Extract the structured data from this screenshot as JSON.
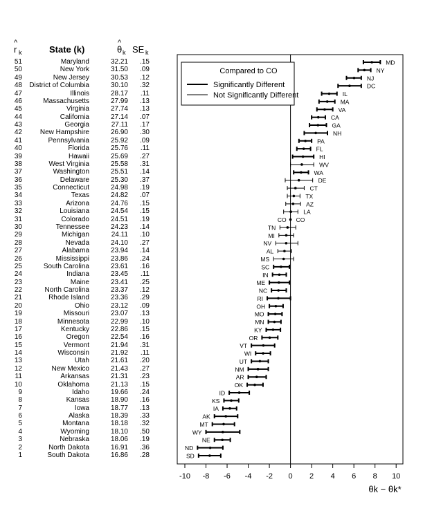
{
  "headers": {
    "rank": "r",
    "rank_sub": "k",
    "hat": "^",
    "state": "State (k)",
    "theta": "θ",
    "theta_sub": "k",
    "se": "SE",
    "se_sub": "k"
  },
  "rows": [
    {
      "rank": "51",
      "state": "Maryland",
      "theta": "32.21",
      "se": ".15"
    },
    {
      "rank": "50",
      "state": "New York",
      "theta": "31.50",
      "se": ".09"
    },
    {
      "rank": "49",
      "state": "New Jersey",
      "theta": "30.53",
      "se": ".12"
    },
    {
      "rank": "48",
      "state": "District of Columbia",
      "theta": "30.10",
      "se": ".32"
    },
    {
      "rank": "47",
      "state": "Illinois",
      "theta": "28.17",
      "se": ".11"
    },
    {
      "rank": "46",
      "state": "Massachusetts",
      "theta": "27.99",
      "se": ".13"
    },
    {
      "rank": "45",
      "state": "Virginia",
      "theta": "27.74",
      "se": ".13"
    },
    {
      "rank": "44",
      "state": "California",
      "theta": "27.14",
      "se": ".07"
    },
    {
      "rank": "43",
      "state": "Georgia",
      "theta": "27.11",
      "se": ".17"
    },
    {
      "rank": "42",
      "state": "New Hampshire",
      "theta": "26.90",
      "se": ".30"
    },
    {
      "rank": "41",
      "state": "Pennsylvania",
      "theta": "25.92",
      "se": ".09"
    },
    {
      "rank": "40",
      "state": "Florida",
      "theta": "25.76",
      "se": ".11"
    },
    {
      "rank": "39",
      "state": "Hawaii",
      "theta": "25.69",
      "se": ".27"
    },
    {
      "rank": "38",
      "state": "West Virginia",
      "theta": "25.58",
      "se": ".31"
    },
    {
      "rank": "37",
      "state": "Washington",
      "theta": "25.51",
      "se": ".14"
    },
    {
      "rank": "36",
      "state": "Delaware",
      "theta": "25.30",
      "se": ".37"
    },
    {
      "rank": "35",
      "state": "Connecticut",
      "theta": "24.98",
      "se": ".19"
    },
    {
      "rank": "34",
      "state": "Texas",
      "theta": "24.82",
      "se": ".07"
    },
    {
      "rank": "33",
      "state": "Arizona",
      "theta": "24.76",
      "se": ".15"
    },
    {
      "rank": "32",
      "state": "Louisiana",
      "theta": "24.54",
      "se": ".15"
    },
    {
      "rank": "31",
      "state": "Colorado",
      "theta": "24.51",
      "se": ".19"
    },
    {
      "rank": "30",
      "state": "Tennessee",
      "theta": "24.23",
      "se": ".14"
    },
    {
      "rank": "29",
      "state": "Michigan",
      "theta": "24.11",
      "se": ".10"
    },
    {
      "rank": "28",
      "state": "Nevada",
      "theta": "24.10",
      "se": ".27"
    },
    {
      "rank": "27",
      "state": "Alabama",
      "theta": "23.94",
      "se": ".14"
    },
    {
      "rank": "26",
      "state": "Mississippi",
      "theta": "23.86",
      "se": ".24"
    },
    {
      "rank": "25",
      "state": "South Carolina",
      "theta": "23.61",
      "se": ".16"
    },
    {
      "rank": "24",
      "state": "Indiana",
      "theta": "23.45",
      "se": ".11"
    },
    {
      "rank": "23",
      "state": "Maine",
      "theta": "23.41",
      "se": ".25"
    },
    {
      "rank": "22",
      "state": "North Carolina",
      "theta": "23.37",
      "se": ".12"
    },
    {
      "rank": "21",
      "state": "Rhode Island",
      "theta": "23.36",
      "se": ".29"
    },
    {
      "rank": "20",
      "state": "Ohio",
      "theta": "23.12",
      "se": ".09"
    },
    {
      "rank": "19",
      "state": "Missouri",
      "theta": "23.07",
      "se": ".13"
    },
    {
      "rank": "18",
      "state": "Minnesota",
      "theta": "22.99",
      "se": ".10"
    },
    {
      "rank": "17",
      "state": "Kentucky",
      "theta": "22.86",
      "se": ".15"
    },
    {
      "rank": "16",
      "state": "Oregon",
      "theta": "22.54",
      "se": ".16"
    },
    {
      "rank": "15",
      "state": "Vermont",
      "theta": "21.94",
      "se": ".31"
    },
    {
      "rank": "14",
      "state": "Wisconsin",
      "theta": "21.92",
      "se": ".11"
    },
    {
      "rank": "13",
      "state": "Utah",
      "theta": "21.61",
      "se": ".20"
    },
    {
      "rank": "12",
      "state": "New Mexico",
      "theta": "21.43",
      "se": ".27"
    },
    {
      "rank": "11",
      "state": "Arkansas",
      "theta": "21.31",
      "se": ".23"
    },
    {
      "rank": "10",
      "state": "Oklahoma",
      "theta": "21.13",
      "se": ".15"
    },
    {
      "rank": "9",
      "state": "Idaho",
      "theta": "19.66",
      "se": ".24"
    },
    {
      "rank": "8",
      "state": "Kansas",
      "theta": "18.90",
      "se": ".16"
    },
    {
      "rank": "7",
      "state": "Iowa",
      "theta": "18.77",
      "se": ".13"
    },
    {
      "rank": "6",
      "state": "Alaska",
      "theta": "18.39",
      "se": ".33"
    },
    {
      "rank": "5",
      "state": "Montana",
      "theta": "18.18",
      "se": ".32"
    },
    {
      "rank": "4",
      "state": "Wyoming",
      "theta": "18.10",
      "se": ".50"
    },
    {
      "rank": "3",
      "state": "Nebraska",
      "theta": "18.06",
      "se": ".19"
    },
    {
      "rank": "2",
      "state": "North Dakota",
      "theta": "16.91",
      "se": ".36"
    },
    {
      "rank": "1",
      "state": "South Dakota",
      "theta": "16.86",
      "se": ".28"
    }
  ],
  "chart_data": {
    "type": "scatter",
    "subtype": "error-bar",
    "reference_state": "CO",
    "legend": {
      "title": "Compared to CO",
      "entries": [
        {
          "label": "Significantly Different",
          "style": "thick"
        },
        {
          "label": "Not Significantly Different",
          "style": "thin"
        }
      ],
      "placement": "top-left"
    },
    "xlabel": "θk − θk*",
    "xlim": [
      -10.5,
      10.5
    ],
    "xticks": [
      -10,
      -8,
      -6,
      -4,
      -2,
      0,
      2,
      4,
      6,
      8,
      10
    ],
    "reference_line": 0,
    "points": [
      {
        "state": "MD",
        "diff": 7.7,
        "lo": 6.9,
        "hi": 8.5,
        "sig": true
      },
      {
        "state": "NY",
        "diff": 6.99,
        "lo": 6.4,
        "hi": 7.6,
        "sig": true
      },
      {
        "state": "NJ",
        "diff": 6.02,
        "lo": 5.3,
        "hi": 6.7,
        "sig": true
      },
      {
        "state": "DC",
        "diff": 5.59,
        "lo": 4.5,
        "hi": 6.7,
        "sig": true
      },
      {
        "state": "IL",
        "diff": 3.66,
        "lo": 2.95,
        "hi": 4.4,
        "sig": true
      },
      {
        "state": "MA",
        "diff": 3.48,
        "lo": 2.7,
        "hi": 4.2,
        "sig": true
      },
      {
        "state": "VA",
        "diff": 3.23,
        "lo": 2.5,
        "hi": 4.0,
        "sig": true
      },
      {
        "state": "CA",
        "diff": 2.63,
        "lo": 2.0,
        "hi": 3.3,
        "sig": true
      },
      {
        "state": "GA",
        "diff": 2.6,
        "lo": 1.8,
        "hi": 3.4,
        "sig": true
      },
      {
        "state": "NH",
        "diff": 2.39,
        "lo": 1.3,
        "hi": 3.5,
        "sig": true
      },
      {
        "state": "PA",
        "diff": 1.41,
        "lo": 0.8,
        "hi": 2.0,
        "sig": true
      },
      {
        "state": "FL",
        "diff": 1.25,
        "lo": 0.6,
        "hi": 1.9,
        "sig": true
      },
      {
        "state": "HI",
        "diff": 1.18,
        "lo": 0.2,
        "hi": 2.2,
        "sig": true
      },
      {
        "state": "WV",
        "diff": 1.07,
        "lo": 0.0,
        "hi": 2.2,
        "sig": false
      },
      {
        "state": "WA",
        "diff": 1.0,
        "lo": 0.3,
        "hi": 1.7,
        "sig": true
      },
      {
        "state": "DE",
        "diff": 0.79,
        "lo": -0.5,
        "hi": 2.1,
        "sig": false
      },
      {
        "state": "CT",
        "diff": 0.47,
        "lo": -0.3,
        "hi": 1.3,
        "sig": false
      },
      {
        "state": "TX",
        "diff": 0.31,
        "lo": -0.3,
        "hi": 0.9,
        "sig": false
      },
      {
        "state": "AZ",
        "diff": 0.25,
        "lo": -0.45,
        "hi": 0.95,
        "sig": false
      },
      {
        "state": "LA",
        "diff": 0.03,
        "lo": -0.65,
        "hi": 0.7,
        "sig": false
      },
      {
        "state": "CO",
        "diff": 0.0,
        "lo": 0.0,
        "hi": 0.0,
        "sig": false
      },
      {
        "state": "TN",
        "diff": -0.28,
        "lo": -1.0,
        "hi": 0.5,
        "sig": false
      },
      {
        "state": "MI",
        "diff": -0.4,
        "lo": -1.1,
        "hi": 0.3,
        "sig": false
      },
      {
        "state": "NV",
        "diff": -0.41,
        "lo": -1.4,
        "hi": 0.7,
        "sig": false
      },
      {
        "state": "AL",
        "diff": -0.57,
        "lo": -1.2,
        "hi": 0.1,
        "sig": false
      },
      {
        "state": "MS",
        "diff": -0.65,
        "lo": -1.6,
        "hi": 0.3,
        "sig": false
      },
      {
        "state": "SC",
        "diff": -0.9,
        "lo": -1.6,
        "hi": -0.1,
        "sig": true
      },
      {
        "state": "IN",
        "diff": -1.06,
        "lo": -1.7,
        "hi": -0.4,
        "sig": true
      },
      {
        "state": "ME",
        "diff": -1.1,
        "lo": -2.0,
        "hi": -0.1,
        "sig": true
      },
      {
        "state": "NC",
        "diff": -1.14,
        "lo": -1.8,
        "hi": -0.4,
        "sig": true
      },
      {
        "state": "RI",
        "diff": -1.15,
        "lo": -2.2,
        "hi": 0.0,
        "sig": true
      },
      {
        "state": "OH",
        "diff": -1.39,
        "lo": -2.0,
        "hi": -0.7,
        "sig": true
      },
      {
        "state": "MO",
        "diff": -1.44,
        "lo": -2.1,
        "hi": -0.8,
        "sig": true
      },
      {
        "state": "MN",
        "diff": -1.52,
        "lo": -2.1,
        "hi": -0.9,
        "sig": true
      },
      {
        "state": "KY",
        "diff": -1.65,
        "lo": -2.3,
        "hi": -0.95,
        "sig": true
      },
      {
        "state": "OR",
        "diff": -1.97,
        "lo": -2.7,
        "hi": -1.2,
        "sig": true
      },
      {
        "state": "VT",
        "diff": -2.57,
        "lo": -3.7,
        "hi": -1.5,
        "sig": true
      },
      {
        "state": "WI",
        "diff": -2.59,
        "lo": -3.3,
        "hi": -1.9,
        "sig": true
      },
      {
        "state": "UT",
        "diff": -2.9,
        "lo": -3.7,
        "hi": -2.1,
        "sig": true
      },
      {
        "state": "NM",
        "diff": -3.08,
        "lo": -4.0,
        "hi": -2.1,
        "sig": true
      },
      {
        "state": "AR",
        "diff": -3.2,
        "lo": -4.0,
        "hi": -2.3,
        "sig": true
      },
      {
        "state": "OK",
        "diff": -3.38,
        "lo": -4.1,
        "hi": -2.6,
        "sig": true
      },
      {
        "state": "ID",
        "diff": -4.85,
        "lo": -5.8,
        "hi": -3.9,
        "sig": true
      },
      {
        "state": "KS",
        "diff": -5.61,
        "lo": -6.3,
        "hi": -4.9,
        "sig": true
      },
      {
        "state": "IA",
        "diff": -5.74,
        "lo": -6.4,
        "hi": -5.1,
        "sig": true
      },
      {
        "state": "AK",
        "diff": -6.12,
        "lo": -7.2,
        "hi": -5.0,
        "sig": true
      },
      {
        "state": "MT",
        "diff": -6.33,
        "lo": -7.4,
        "hi": -5.3,
        "sig": true
      },
      {
        "state": "WY",
        "diff": -6.41,
        "lo": -8.0,
        "hi": -4.8,
        "sig": true
      },
      {
        "state": "NE",
        "diff": -6.45,
        "lo": -7.2,
        "hi": -5.7,
        "sig": true
      },
      {
        "state": "ND",
        "diff": -7.6,
        "lo": -8.8,
        "hi": -6.4,
        "sig": true
      },
      {
        "state": "SD",
        "diff": -7.65,
        "lo": -8.7,
        "hi": -6.6,
        "sig": true
      }
    ]
  }
}
